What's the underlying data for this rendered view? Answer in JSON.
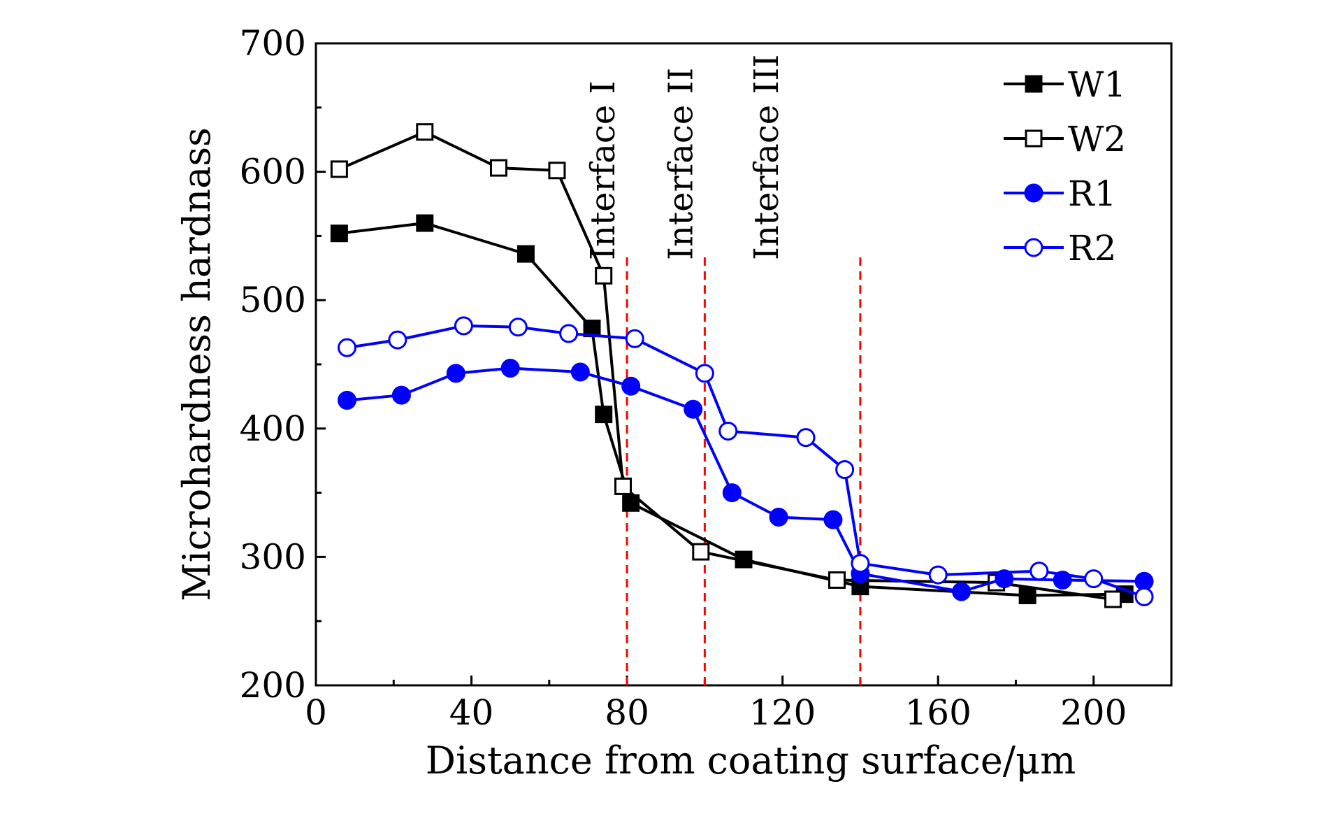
{
  "chart_data": {
    "type": "line",
    "title": "",
    "xlabel": "Distance from coating surface/μm",
    "ylabel": "Microhardness hardnass",
    "xlim": [
      0,
      220
    ],
    "ylim": [
      200,
      700
    ],
    "x_ticks": [
      0,
      40,
      80,
      120,
      160,
      200
    ],
    "y_ticks": [
      200,
      300,
      400,
      500,
      600,
      700
    ],
    "x_tick_labels": [
      "0",
      "40",
      "80",
      "120",
      "160",
      "200"
    ],
    "y_tick_labels": [
      "200",
      "300",
      "400",
      "500",
      "600",
      "700"
    ],
    "legend_position": "top-right",
    "grid": false,
    "interfaces": [
      {
        "label": "Interface I",
        "x": 80
      },
      {
        "label": "Interface II",
        "x": 100
      },
      {
        "label": "Interface III",
        "x": 140
      }
    ],
    "interface_line_color": "#ff0000",
    "series": [
      {
        "name": "W1",
        "color": "#000000",
        "marker": "square-filled",
        "x": [
          6,
          28,
          54,
          71,
          74,
          81,
          110,
          140,
          183,
          208
        ],
        "y": [
          552,
          560,
          536,
          478,
          411,
          342,
          298,
          277,
          270,
          271
        ]
      },
      {
        "name": "W2",
        "color": "#000000",
        "marker": "square-open",
        "x": [
          6,
          28,
          47,
          62,
          74,
          79,
          99,
          134,
          175,
          205
        ],
        "y": [
          602,
          631,
          603,
          601,
          519,
          355,
          304,
          282,
          280,
          267
        ]
      },
      {
        "name": "R1",
        "color": "#0000ff",
        "marker": "circle-filled",
        "x": [
          8,
          22,
          36,
          50,
          68,
          81,
          97,
          107,
          119,
          133,
          140,
          166,
          177,
          192,
          213
        ],
        "y": [
          422,
          426,
          443,
          447,
          444,
          433,
          415,
          350,
          331,
          329,
          287,
          273,
          283,
          282,
          281
        ]
      },
      {
        "name": "R2",
        "color": "#0000ff",
        "marker": "circle-open",
        "x": [
          8,
          21,
          38,
          52,
          65,
          82,
          100,
          106,
          126,
          136,
          140,
          160,
          186,
          200,
          213
        ],
        "y": [
          463,
          469,
          480,
          479,
          474,
          470,
          443,
          398,
          393,
          368,
          295,
          286,
          289,
          283,
          269
        ]
      }
    ]
  }
}
